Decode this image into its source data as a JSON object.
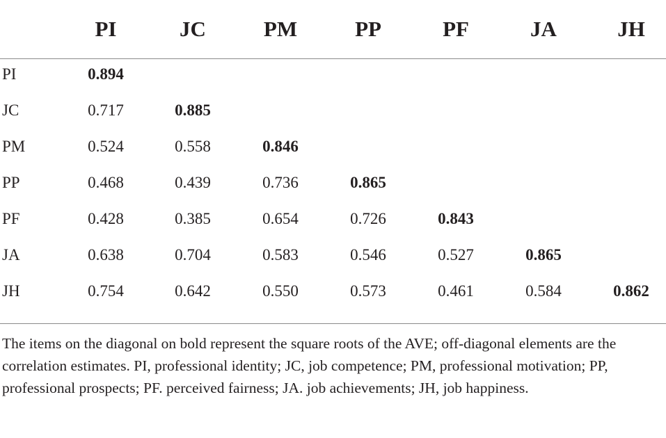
{
  "table": {
    "columns": [
      "PI",
      "JC",
      "PM",
      "PP",
      "PF",
      "JA",
      "JH"
    ],
    "rows": [
      {
        "label": "PI",
        "values": [
          "0.894"
        ]
      },
      {
        "label": "JC",
        "values": [
          "0.717",
          "0.885"
        ]
      },
      {
        "label": "PM",
        "values": [
          "0.524",
          "0.558",
          "0.846"
        ]
      },
      {
        "label": "PP",
        "values": [
          "0.468",
          "0.439",
          "0.736",
          "0.865"
        ]
      },
      {
        "label": "PF",
        "values": [
          "0.428",
          "0.385",
          "0.654",
          "0.726",
          "0.843"
        ]
      },
      {
        "label": "JA",
        "values": [
          "0.638",
          "0.704",
          "0.583",
          "0.546",
          "0.527",
          "0.865"
        ]
      },
      {
        "label": "JH",
        "values": [
          "0.754",
          "0.642",
          "0.550",
          "0.573",
          "0.461",
          "0.584",
          "0.862"
        ]
      }
    ]
  },
  "note": "The items on the diagonal on bold represent the square roots of the AVE; off-diagonal elements are the correlation estimates. PI, professional identity; JC, job competence; PM, professional motivation; PP, professional prospects; PF. perceived fairness; JA. job achievements; JH, job happiness."
}
